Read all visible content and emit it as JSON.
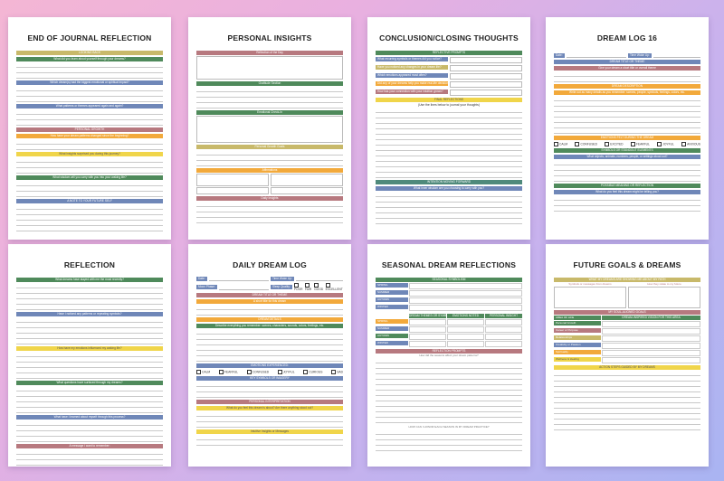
{
  "colors": {
    "green": "#4f8a5b",
    "blue": "#6f87b8",
    "yellow": "#f0d54a",
    "orange": "#f2a93b",
    "rose": "#b7797f",
    "olive": "#c8b96a"
  },
  "pages": {
    "end_journal": {
      "title": "END OF JOURNAL REFLECTION",
      "h1": "LOOKING BACK",
      "q1": "What did you learn about yourself through your dreams?",
      "q2": "Which dream(s) had the biggest emotional or spiritual impact?",
      "q3": "What patterns or themes appeared again and again?",
      "h2": "PERSONAL GROWTH",
      "q4": "How have your dream patterns changed since the beginning?",
      "q5": "What insights surprised you during this journey?",
      "q6": "What wisdom will you carry with you into your waking life?",
      "h3": "A NOTE TO YOUR FUTURE SELF"
    },
    "personal_insights": {
      "title": "PERSONAL INSIGHTS",
      "h1": "Reflection of the Day",
      "h2": "Gratitude Section",
      "h3": "Emotional Check-In",
      "h4": "Personal Growth Goals",
      "h5": "Affirmations",
      "h6": "Daily Insights"
    },
    "conclusion": {
      "title": "CONCLUSION/CLOSING THOUGHTS",
      "h1": "REFLECTIVE PROMPTS",
      "p1": "What recurring symbols or themes did you notice?",
      "p2": "Have you noticed any changes in your dream life?",
      "p3": "Which emotions appeared most often?",
      "p4": "Did any of your dreams help you make real-life decisions?",
      "p5": "How has your connection with your intuition grown?",
      "h2": "FINAL REFLECTIONS",
      "sub": "(Use the lines below to journal your thoughts)",
      "h3": "INTENTION MOVING FORWARD",
      "q": "What inner wisdom are you choosing to carry with you?"
    },
    "dream_log": {
      "title": "DREAM LOG 16",
      "date": "Date:",
      "time": "Time Woke Up:",
      "h1": "DREAM TITLE OR THEME",
      "q1": "Give your dream a short title or overall theme",
      "h2": "DREAM DESCRIPTION",
      "q2": "Write out as many details as you remember: scenes, people, symbols, feelings, colors, etc.",
      "h3": "EMOTIONS FELT DURING THE DREAM",
      "emotions": [
        "CALM",
        "CONFUSED",
        "EXCITED",
        "FEARFUL",
        "JOYFUL",
        "ANXIOUS"
      ],
      "h4": "SYMBOLS OR STANDOUT ELEMENTS",
      "q4": "What objects, animals, numbers, people, or settings stood out?",
      "h5": "POSSIBLE MEANING OR REFLECTION",
      "q5": "What do you feel this dream might be telling you?"
    },
    "reflection": {
      "title": "REFLECTION",
      "q1": "What dreams have stayed with me the most recently?",
      "q2": "Have I noticed any patterns or repeating symbols?",
      "q3": "How have my emotions influenced my waking life?",
      "q4": "What questions have surfaced through my dreams?",
      "q5": "What have I learned about myself through this process?",
      "q6": "A message I want to remember:"
    },
    "daily_dream": {
      "title": "DAILY DREAM LOG",
      "date": "Date:",
      "time": "Time Woke Up:",
      "moon": "Moon Phase:",
      "sleep": "Sleep Quality:",
      "quality": [
        "POOR",
        "FAIR",
        "GOOD",
        "EXCELLENT"
      ],
      "h1": "DREAM TITLE OR THEME",
      "q1": "A short title for this dream",
      "h2": "DREAM DETAILS",
      "q2": "Describe everything you remember: scenes, characters, sounds, colors, feelings, etc.",
      "h3": "EMOTIONS EXPERIENCED:",
      "emotions": [
        "CALM",
        "FEARFUL",
        "CONFUSED",
        "JOYFUL",
        "CURIOUS",
        "SAD"
      ],
      "h4": "KEY SYMBOLS OR IMAGERY",
      "h5": "PERSONAL INTERPRETATION",
      "q5": "What do you feel this dream is about? Are there anything stood out?",
      "h6": "Intuitive Insights or Messages"
    },
    "seasonal": {
      "title": "SEASONAL DREAM REFLECTIONS",
      "h1": "SEASONAL SYMBOLISM",
      "seasons": [
        "SPRING",
        "SUMMER",
        "AUTUMN",
        "WINTER"
      ],
      "cols": [
        "DREAM THEMES OR SYMBOLS",
        "EMOTIONS NOTED",
        "PERSONAL INSIGHT"
      ],
      "h2": "REFLECTION PROMPTS",
      "q2": "How did the seasons affect your dream patterns?",
      "foot": "HOW CAN I HONOR EACH SEASON IN MY DREAM PRACTICE?"
    },
    "future": {
      "title": "FUTURE GOALS & DREAMS",
      "h1": "WHAT MY DREAMS ARE SHOWING ME ABOUT MY PATH",
      "c1": "Symbols or messages from dreams",
      "c2": "How they relate to my future",
      "h2": "MY SOUL-ALIGNED GOALS",
      "col1": "AREA OF LIFE",
      "col2": "DREAM-INSPIRED VISION FOR THIS AREA",
      "areas": [
        "Personal Growth",
        "Career or Purpose",
        "Relationships",
        "Creativity or Passion",
        "Spirituality",
        "Wellness & Healing"
      ],
      "h3": "ACTION STEPS GUIDED BY MY DREAMS"
    }
  }
}
